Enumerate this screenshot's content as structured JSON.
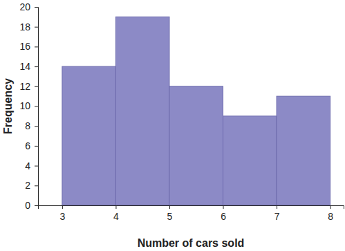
{
  "chart_data": {
    "type": "histogram",
    "x_label": "Number of cars sold",
    "y_label": "Frequency",
    "bins": [
      3,
      4,
      5,
      6,
      7,
      8
    ],
    "values": [
      14,
      19,
      12,
      9,
      11
    ],
    "color": "#8c8ac6",
    "xlim": [
      2.55,
      8.25
    ],
    "xticks": [
      3,
      4,
      5,
      6,
      7,
      8
    ],
    "ylim": [
      0,
      20
    ],
    "yticks": [
      0,
      2,
      4,
      6,
      8,
      10,
      12,
      14,
      16,
      18,
      20
    ],
    "grid": false
  }
}
